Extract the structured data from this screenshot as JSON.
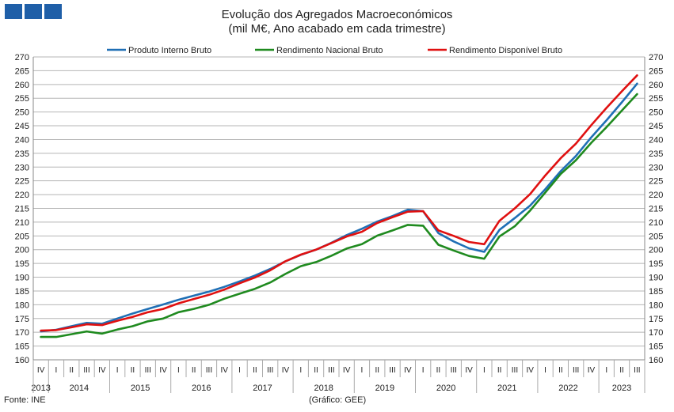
{
  "header": {
    "title": "Evolução dos Agregados Macroeconómicos",
    "subtitle": "(mil M€, Ano acabado em cada trimestre)"
  },
  "footer": {
    "source": "Fonte: INE",
    "credit": "(Gráfico: GEE)"
  },
  "chart_data": {
    "type": "line",
    "title": "Evolução dos Agregados Macroeconómicos",
    "subtitle": "(mil M€, Ano acabado em cada trimestre)",
    "ylim": [
      160,
      270
    ],
    "ytick_step": 5,
    "grid": "horizontal",
    "legend_position": "top",
    "quarters": [
      "IV",
      "I",
      "II",
      "III",
      "IV",
      "I",
      "II",
      "III",
      "IV",
      "I",
      "II",
      "III",
      "IV",
      "I",
      "II",
      "III",
      "IV",
      "I",
      "II",
      "III",
      "IV",
      "I",
      "II",
      "III",
      "IV",
      "I",
      "II",
      "III",
      "IV",
      "I",
      "II",
      "III",
      "IV",
      "I",
      "II",
      "III",
      "IV",
      "I",
      "II",
      "III"
    ],
    "years": [
      {
        "label": "2013",
        "start": 0,
        "end": 0
      },
      {
        "label": "2014",
        "start": 1,
        "end": 4
      },
      {
        "label": "2015",
        "start": 5,
        "end": 8
      },
      {
        "label": "2016",
        "start": 9,
        "end": 12
      },
      {
        "label": "2017",
        "start": 13,
        "end": 16
      },
      {
        "label": "2018",
        "start": 17,
        "end": 20
      },
      {
        "label": "2019",
        "start": 21,
        "end": 24
      },
      {
        "label": "2020",
        "start": 25,
        "end": 28
      },
      {
        "label": "2021",
        "start": 29,
        "end": 32
      },
      {
        "label": "2022",
        "start": 33,
        "end": 36
      },
      {
        "label": "2023",
        "start": 37,
        "end": 39
      }
    ],
    "series": [
      {
        "name": "Produto Interno Bruto",
        "color": "#1f6fb5",
        "values": [
          170.3,
          170.9,
          172.2,
          173.4,
          173.1,
          175.0,
          176.8,
          178.5,
          180.1,
          181.8,
          183.3,
          184.8,
          186.5,
          188.5,
          190.6,
          193.0,
          195.8,
          198.1,
          200.0,
          202.5,
          205.3,
          207.6,
          210.2,
          212.2,
          214.5,
          214.0,
          206.0,
          203.0,
          200.5,
          199.2,
          207.2,
          211.5,
          216.0,
          222.0,
          228.5,
          234.0,
          240.8,
          247.0,
          253.5,
          260.3
        ]
      },
      {
        "name": "Rendimento Nacional Bruto",
        "color": "#1f8a1f",
        "values": [
          168.3,
          168.3,
          169.3,
          170.3,
          169.5,
          171.0,
          172.2,
          174.0,
          175.0,
          177.3,
          178.5,
          180.0,
          182.2,
          184.0,
          185.8,
          188.1,
          191.2,
          194.0,
          195.5,
          197.8,
          200.4,
          202.0,
          205.1,
          207.0,
          209.0,
          208.7,
          201.8,
          199.7,
          197.7,
          196.7,
          204.8,
          208.5,
          214.2,
          220.8,
          227.5,
          232.5,
          238.8,
          244.5,
          250.5,
          256.5
        ]
      },
      {
        "name": "Rendimento Disponível Bruto",
        "color": "#e01010",
        "values": [
          170.6,
          170.8,
          171.8,
          172.9,
          172.6,
          174.2,
          175.6,
          177.3,
          178.5,
          180.5,
          182.1,
          183.6,
          185.5,
          187.8,
          189.9,
          192.5,
          195.8,
          198.2,
          200.0,
          202.4,
          204.8,
          206.5,
          209.7,
          211.8,
          213.8,
          214.0,
          207.0,
          205.0,
          202.8,
          202.0,
          210.5,
          215.0,
          220.2,
          227.0,
          233.2,
          238.5,
          245.2,
          251.5,
          257.5,
          263.3
        ]
      }
    ]
  }
}
